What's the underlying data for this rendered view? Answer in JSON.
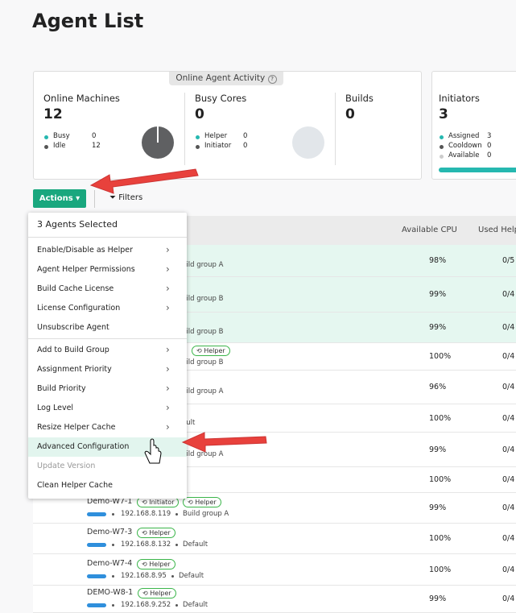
{
  "header": {
    "title": "Agent List"
  },
  "activity": {
    "label": "Online Agent Activity",
    "machines": {
      "title": "Online Machines",
      "total": 12,
      "items": [
        {
          "label": "Busy",
          "value": 0
        },
        {
          "label": "Idle",
          "value": 12
        }
      ]
    },
    "cores": {
      "title": "Busy Cores",
      "total": 0,
      "items": [
        {
          "label": "Helper",
          "value": 0
        },
        {
          "label": "Initiator",
          "value": 0
        }
      ]
    },
    "builds": {
      "title": "Builds",
      "total": 0
    }
  },
  "initiators": {
    "title": "Initiators",
    "total": 3,
    "items": [
      {
        "label": "Assigned",
        "value": 3
      },
      {
        "label": "Cooldown",
        "value": 0
      },
      {
        "label": "Available",
        "value": 0
      }
    ]
  },
  "toolbar": {
    "actions": "Actions",
    "filters": "Filters"
  },
  "table": {
    "columns": [
      "Available CPU",
      "Used Help"
    ],
    "rows": [
      {
        "group": "uild group A",
        "cpu": "98%",
        "helpers": "0/5",
        "selected": true
      },
      {
        "group": "uild group B",
        "cpu": "99%",
        "helpers": "0/4",
        "selected": true
      },
      {
        "group": "uild group B",
        "cpu": "99%",
        "helpers": "0/4",
        "selected": true
      },
      {
        "tags": [
          "Helper"
        ],
        "group": "uild group B",
        "cpu": "100%",
        "helpers": "0/4"
      },
      {
        "group": "uild group A",
        "cpu": "96%",
        "helpers": "0/4"
      },
      {
        "group": "ault",
        "cpu": "100%",
        "helpers": "0/4"
      },
      {
        "group": "uild group A",
        "cpu": "99%",
        "helpers": "0/4"
      },
      {
        "cpu": "100%",
        "helpers": "0/4"
      },
      {
        "name": "Demo-W7-1",
        "tags": [
          "Initiator",
          "Helper"
        ],
        "ip": "192.168.8.119",
        "group": "Build group A",
        "cpu": "99%",
        "helpers": "0/4"
      },
      {
        "name": "Demo-W7-3",
        "tags": [
          "Helper"
        ],
        "ip": "192.168.8.132",
        "group": "Default",
        "cpu": "100%",
        "helpers": "0/4"
      },
      {
        "name": "Demo-W7-4",
        "tags": [
          "Helper"
        ],
        "ip": "192.168.8.95",
        "group": "Default",
        "cpu": "100%",
        "helpers": "0/4"
      },
      {
        "name": "DEMO-W8-1",
        "tags": [
          "Helper"
        ],
        "ip": "192.168.9.252",
        "group": "Default",
        "cpu": "99%",
        "helpers": "0/4"
      }
    ]
  },
  "menu": {
    "title": "3 Agents Selected",
    "groups": [
      [
        {
          "label": "Enable/Disable as Helper",
          "submenu": true
        },
        {
          "label": "Agent Helper Permissions",
          "submenu": true
        },
        {
          "label": "Build Cache License",
          "submenu": true
        },
        {
          "label": "License Configuration",
          "submenu": true
        },
        {
          "label": "Unsubscribe Agent"
        }
      ],
      [
        {
          "label": "Add to Build Group",
          "submenu": true
        },
        {
          "label": "Assignment Priority",
          "submenu": true
        },
        {
          "label": "Build Priority",
          "submenu": true
        },
        {
          "label": "Log Level",
          "submenu": true
        },
        {
          "label": "Resize Helper Cache",
          "submenu": true
        },
        {
          "label": "Advanced Configuration",
          "highlighted": true
        },
        {
          "label": "Update Version",
          "disabled": true
        },
        {
          "label": "Clean Helper Cache"
        }
      ]
    ]
  }
}
